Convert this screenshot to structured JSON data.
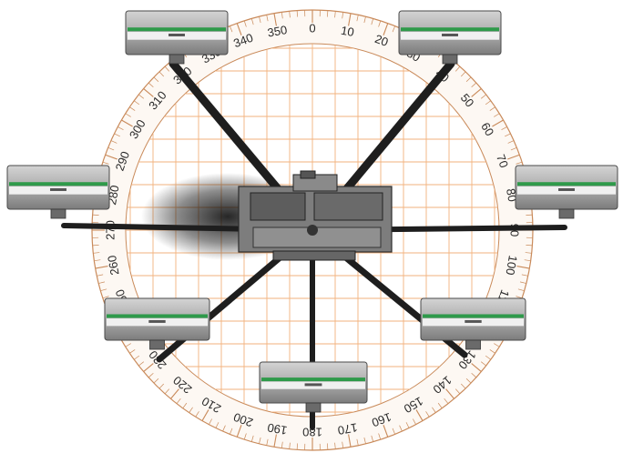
{
  "protractor": {
    "degree_labels": [
      "0",
      "10",
      "20",
      "30",
      "40",
      "50",
      "60",
      "70",
      "80",
      "90",
      "100",
      "110",
      "120",
      "130",
      "140",
      "150",
      "160",
      "170",
      "180",
      "190",
      "200",
      "210",
      "220",
      "230",
      "240",
      "250",
      "260",
      "270",
      "280",
      "290",
      "300",
      "310",
      "320",
      "330",
      "340",
      "350"
    ],
    "scale_color": "#c98a5a",
    "grid_color": "#f2b27d",
    "label_color": "#2a2a2a"
  },
  "spray_units": {
    "count": 8,
    "body_color": "#9a9a9a",
    "stripe_color": "#2e9a4a",
    "boom_color": "#222222"
  }
}
